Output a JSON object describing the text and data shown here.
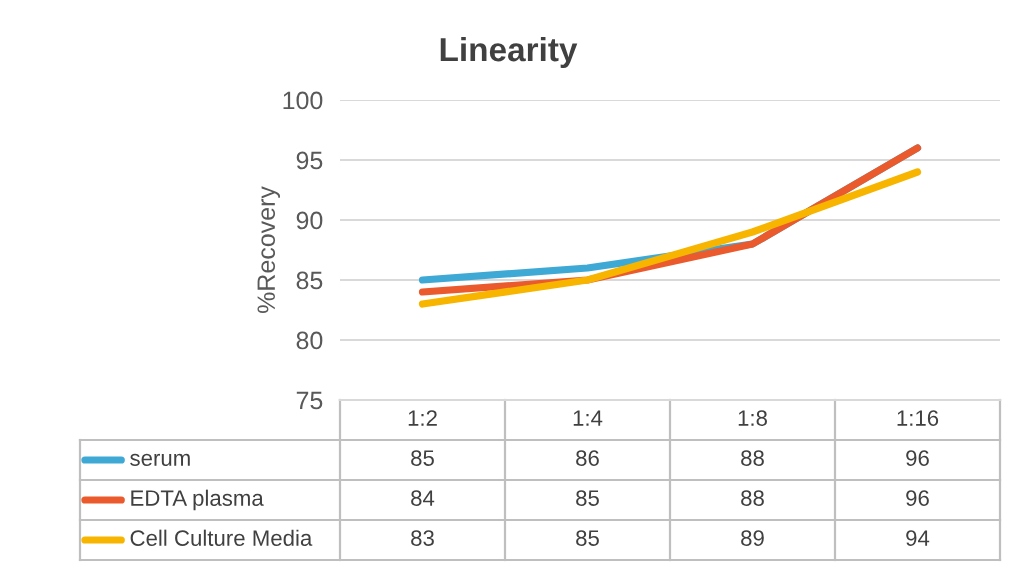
{
  "chart_data": {
    "type": "line",
    "title": "Linearity",
    "ylabel": "%Recovery",
    "categories": [
      "1:2",
      "1:4",
      "1:8",
      "1:16"
    ],
    "series": [
      {
        "name": "serum",
        "color": "#3fa9d6",
        "values": [
          85,
          86,
          88,
          96
        ]
      },
      {
        "name": "EDTA plasma",
        "color": "#ea5a2c",
        "values": [
          84,
          85,
          88,
          96
        ]
      },
      {
        "name": "Cell Culture Media",
        "color": "#f7b500",
        "values": [
          83,
          85,
          89,
          94
        ]
      }
    ],
    "ylim": [
      75,
      100
    ],
    "yticks": [
      75,
      80,
      85,
      90,
      95,
      100
    ],
    "grid": "y",
    "legend": "bottom",
    "data_labels": true,
    "marker": "none",
    "line_style": "solid"
  }
}
